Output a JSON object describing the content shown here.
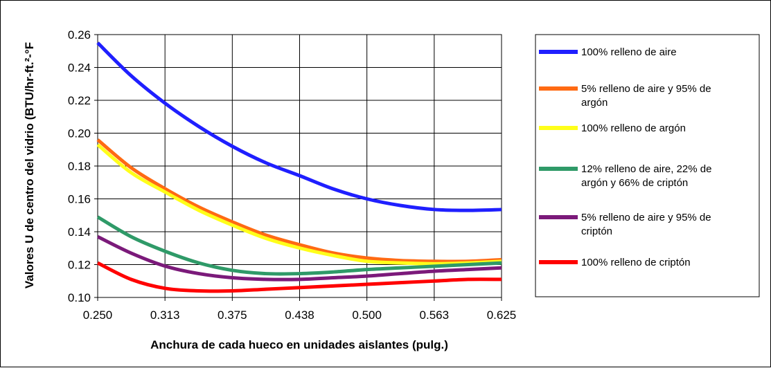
{
  "chart_data": {
    "type": "line",
    "xlabel": "Anchura de cada hueco en unidades aislantes (pulg.)",
    "ylabel": "Valores U de centro del vidrio  (BTU/hr-ft.²-°F",
    "x_ticks": [
      "0.250",
      "0.313",
      "0.375",
      "0.438",
      "0.500",
      "0.563",
      "0.625"
    ],
    "y_ticks": [
      "0.10",
      "0.12",
      "0.14",
      "0.16",
      "0.18",
      "0.20",
      "0.22",
      "0.24",
      "0.26"
    ],
    "xlim": [
      0.25,
      0.625
    ],
    "ylim": [
      0.1,
      0.26
    ],
    "grid": true,
    "legend_position": "right",
    "series": [
      {
        "name": "100% relleno de aire",
        "legend_lines": [
          "100% relleno de aire"
        ],
        "color": "#1f1fff",
        "x": [
          0.25,
          0.281,
          0.313,
          0.344,
          0.375,
          0.406,
          0.438,
          0.469,
          0.5,
          0.531,
          0.563,
          0.594,
          0.625
        ],
        "y": [
          0.255,
          0.235,
          0.218,
          0.204,
          0.192,
          0.182,
          0.174,
          0.166,
          0.16,
          0.156,
          0.1535,
          0.153,
          0.1535
        ]
      },
      {
        "name": "5% relleno de aire y 95% de argón",
        "legend_lines": [
          "5% relleno de aire y 95% de",
          "argón"
        ],
        "color": "#ff6a13",
        "x": [
          0.25,
          0.281,
          0.313,
          0.344,
          0.375,
          0.406,
          0.438,
          0.469,
          0.5,
          0.531,
          0.563,
          0.594,
          0.625
        ],
        "y": [
          0.196,
          0.179,
          0.166,
          0.155,
          0.146,
          0.138,
          0.132,
          0.127,
          0.124,
          0.1225,
          0.122,
          0.122,
          0.123
        ]
      },
      {
        "name": "100% relleno de argón",
        "legend_lines": [
          "100% relleno de argón"
        ],
        "color": "#ffff1a",
        "x": [
          0.25,
          0.281,
          0.313,
          0.344,
          0.375,
          0.406,
          0.438,
          0.469,
          0.5,
          0.531,
          0.563,
          0.594,
          0.625
        ],
        "y": [
          0.193,
          0.176,
          0.164,
          0.153,
          0.144,
          0.136,
          0.13,
          0.1255,
          0.122,
          0.121,
          0.1205,
          0.121,
          0.122
        ]
      },
      {
        "name": "12% relleno de aire, 22% de argón y 66% de criptón",
        "legend_lines": [
          "12% relleno de aire, 22% de",
          "argón y 66% de criptón"
        ],
        "color": "#2f9a68",
        "x": [
          0.25,
          0.281,
          0.313,
          0.344,
          0.375,
          0.406,
          0.438,
          0.469,
          0.5,
          0.531,
          0.563,
          0.594,
          0.625
        ],
        "y": [
          0.149,
          0.137,
          0.128,
          0.121,
          0.1165,
          0.1145,
          0.1145,
          0.1155,
          0.117,
          0.118,
          0.119,
          0.12,
          0.121
        ]
      },
      {
        "name": "5% relleno de aire y 95% de criptón",
        "legend_lines": [
          "5% relleno de aire y 95% de",
          "criptón"
        ],
        "color": "#7b1a7a",
        "x": [
          0.25,
          0.281,
          0.313,
          0.344,
          0.375,
          0.406,
          0.438,
          0.469,
          0.5,
          0.531,
          0.563,
          0.594,
          0.625
        ],
        "y": [
          0.137,
          0.127,
          0.119,
          0.1145,
          0.112,
          0.111,
          0.111,
          0.112,
          0.113,
          0.1145,
          0.116,
          0.117,
          0.118
        ]
      },
      {
        "name": "100% relleno de criptón",
        "legend_lines": [
          "100% relleno de criptón"
        ],
        "color": "#ff0000",
        "x": [
          0.25,
          0.281,
          0.313,
          0.344,
          0.375,
          0.406,
          0.438,
          0.469,
          0.5,
          0.531,
          0.563,
          0.594,
          0.625
        ],
        "y": [
          0.121,
          0.111,
          0.1055,
          0.104,
          0.104,
          0.105,
          0.106,
          0.107,
          0.108,
          0.109,
          0.11,
          0.111,
          0.111
        ]
      }
    ]
  }
}
